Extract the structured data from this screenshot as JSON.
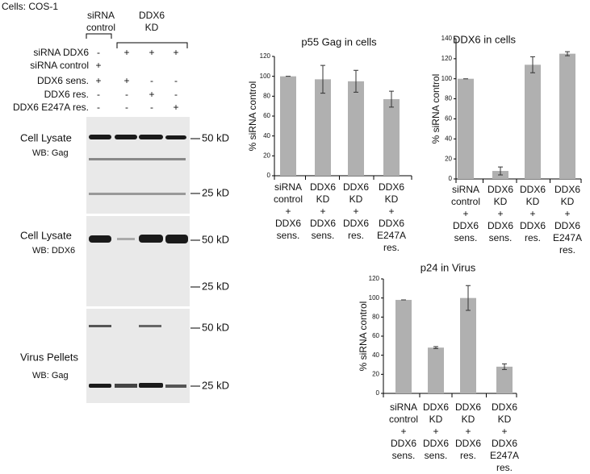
{
  "figure": {
    "cells_label": "Cells: COS-1",
    "header": {
      "control": [
        "siRNA",
        "control"
      ],
      "kd": [
        "DDX6",
        "KD"
      ]
    },
    "rows": [
      {
        "label": "siRNA DDX6",
        "signs": [
          "-",
          "+",
          "+",
          "+"
        ]
      },
      {
        "label": "siRNA control",
        "signs": [
          "+",
          "",
          "",
          ""
        ]
      },
      {
        "label": "DDX6 sens.",
        "signs": [
          "+",
          "+",
          "-",
          "-"
        ]
      },
      {
        "label": "DDX6 res.",
        "signs": [
          "-",
          "-",
          "+",
          "-"
        ]
      },
      {
        "label": "DDX6 E247A res.",
        "signs": [
          "-",
          "-",
          "-",
          "+"
        ]
      }
    ],
    "blots": [
      {
        "labels": [
          "Cell Lysate",
          "WB: Gag"
        ],
        "markers": [
          "50 kD",
          "25 kD"
        ]
      },
      {
        "labels": [
          "Cell Lysate",
          "WB: DDX6"
        ],
        "markers": [
          "50 kD",
          "25 kD"
        ]
      },
      {
        "labels": [
          "Virus Pellets",
          "WB: Gag"
        ],
        "markers": [
          "50 kD",
          "25 kD"
        ]
      }
    ]
  },
  "chart_data": [
    {
      "type": "bar",
      "title": "p55 Gag in cells",
      "y_label": "% siRNA control",
      "categories": [
        [
          "siRNA",
          "control",
          "+",
          "DDX6",
          "sens."
        ],
        [
          "DDX6",
          "KD",
          "+",
          "DDX6",
          "sens."
        ],
        [
          "DDX6",
          "KD",
          "+",
          "DDX6",
          "res."
        ],
        [
          "DDX6",
          "KD",
          "+",
          "DDX6",
          "E247A",
          "res."
        ]
      ],
      "values": [
        100,
        97,
        95,
        77
      ],
      "errors": [
        0,
        14,
        11,
        8
      ],
      "color": "#b0b0b0",
      "ylim": [
        0,
        120
      ],
      "yticks": [
        0,
        20,
        40,
        60,
        80,
        100,
        120
      ]
    },
    {
      "type": "bar",
      "title": "DDX6 in cells",
      "y_label": "% siRNA control",
      "categories": [
        [
          "siRNA",
          "control",
          "+",
          "DDX6",
          "sens."
        ],
        [
          "DDX6",
          "KD",
          "+",
          "DDX6",
          "sens."
        ],
        [
          "DDX6",
          "KD",
          "+",
          "DDX6",
          "res."
        ],
        [
          "DDX6",
          "KD",
          "+",
          "DDX6",
          "E247A",
          "res."
        ]
      ],
      "values": [
        100,
        8,
        114,
        125
      ],
      "errors": [
        0,
        4,
        8,
        2
      ],
      "color": "#b0b0b0",
      "ylim": [
        0,
        140
      ],
      "yticks": [
        0,
        20,
        40,
        60,
        80,
        100,
        120,
        140
      ]
    },
    {
      "type": "bar",
      "title": "p24 in Virus",
      "y_label": "% siRNA control",
      "categories": [
        [
          "siRNA",
          "control",
          "+",
          "DDX6",
          "sens."
        ],
        [
          "DDX6",
          "KD",
          "+",
          "DDX6",
          "sens."
        ],
        [
          "DDX6",
          "KD",
          "+",
          "DDX6",
          "res."
        ],
        [
          "DDX6",
          "KD",
          "+",
          "DDX6",
          "E247A",
          "res."
        ]
      ],
      "values": [
        98,
        48,
        100,
        28
      ],
      "errors": [
        0,
        1,
        13,
        3
      ],
      "color": "#b0b0b0",
      "ylim": [
        0,
        120
      ],
      "yticks": [
        0,
        20,
        40,
        60,
        80,
        100,
        120
      ]
    }
  ]
}
